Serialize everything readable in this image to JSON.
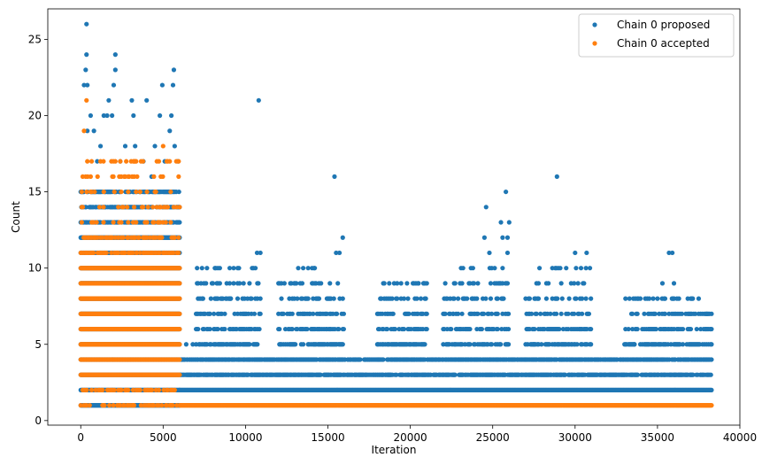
{
  "chart_data": {
    "type": "scatter",
    "title": "",
    "xlabel": "Iteration",
    "ylabel": "Count",
    "xlim": [
      -2000,
      40000
    ],
    "ylim": [
      -0.3,
      27
    ],
    "xticks": [
      0,
      5000,
      10000,
      15000,
      20000,
      25000,
      30000,
      35000,
      40000
    ],
    "yticks": [
      0,
      5,
      10,
      15,
      20,
      25
    ],
    "grid": false,
    "legend_position": "top-right",
    "series": [
      {
        "name": "Chain 0 proposed",
        "color": "#1f77b4",
        "bands": [
          {
            "x0": 0,
            "x1": 6000,
            "y": [
              1,
              2,
              3,
              4,
              5,
              6,
              7,
              8,
              9,
              10,
              11,
              12,
              13,
              14,
              15
            ]
          },
          {
            "x0": 6000,
            "x1": 38300,
            "y": [
              2
            ]
          },
          {
            "x0": 6000,
            "x1": 38300,
            "y": [
              3,
              4
            ],
            "gap_density": true
          }
        ],
        "clusters": [
          {
            "x0": 7000,
            "x1": 11000,
            "y": [
              5,
              6,
              7,
              8,
              9,
              10
            ]
          },
          {
            "x0": 12000,
            "x1": 16000,
            "y": [
              5,
              6,
              7,
              8,
              9,
              10
            ]
          },
          {
            "x0": 18000,
            "x1": 21000,
            "y": [
              5,
              6,
              7,
              8,
              9
            ]
          },
          {
            "x0": 22000,
            "x1": 26000,
            "y": [
              5,
              6,
              7,
              8,
              9,
              10
            ]
          },
          {
            "x0": 27000,
            "x1": 31000,
            "y": [
              5,
              6,
              7,
              8,
              9,
              10
            ]
          },
          {
            "x0": 33000,
            "x1": 38300,
            "y": [
              5,
              6,
              7,
              8
            ]
          }
        ],
        "points": [
          {
            "x": 350,
            "y": 26
          },
          {
            "x": 350,
            "y": 24
          },
          {
            "x": 300,
            "y": 23
          },
          {
            "x": 400,
            "y": 22
          },
          {
            "x": 200,
            "y": 22
          },
          {
            "x": 600,
            "y": 20
          },
          {
            "x": 400,
            "y": 19
          },
          {
            "x": 2100,
            "y": 24
          },
          {
            "x": 2100,
            "y": 23
          },
          {
            "x": 2000,
            "y": 22
          },
          {
            "x": 1900,
            "y": 20
          },
          {
            "x": 1400,
            "y": 20
          },
          {
            "x": 1700,
            "y": 21
          },
          {
            "x": 1600,
            "y": 20
          },
          {
            "x": 3100,
            "y": 21
          },
          {
            "x": 3200,
            "y": 20
          },
          {
            "x": 4000,
            "y": 21
          },
          {
            "x": 4800,
            "y": 20
          },
          {
            "x": 4950,
            "y": 22
          },
          {
            "x": 5600,
            "y": 22
          },
          {
            "x": 5650,
            "y": 23
          },
          {
            "x": 5500,
            "y": 20
          },
          {
            "x": 5400,
            "y": 19
          },
          {
            "x": 5700,
            "y": 18
          },
          {
            "x": 4500,
            "y": 18
          },
          {
            "x": 3800,
            "y": 17
          },
          {
            "x": 3300,
            "y": 18
          },
          {
            "x": 2700,
            "y": 18
          },
          {
            "x": 1200,
            "y": 18
          },
          {
            "x": 800,
            "y": 19
          },
          {
            "x": 5900,
            "y": 17
          },
          {
            "x": 5100,
            "y": 17
          },
          {
            "x": 2400,
            "y": 17
          },
          {
            "x": 1000,
            "y": 17
          },
          {
            "x": 4300,
            "y": 16
          },
          {
            "x": 10800,
            "y": 21
          },
          {
            "x": 10700,
            "y": 11
          },
          {
            "x": 10900,
            "y": 11
          },
          {
            "x": 15400,
            "y": 16
          },
          {
            "x": 15900,
            "y": 12
          },
          {
            "x": 15700,
            "y": 11
          },
          {
            "x": 15500,
            "y": 11
          },
          {
            "x": 14200,
            "y": 10
          },
          {
            "x": 13500,
            "y": 10
          },
          {
            "x": 13000,
            "y": 9
          },
          {
            "x": 24600,
            "y": 14
          },
          {
            "x": 25800,
            "y": 15
          },
          {
            "x": 25500,
            "y": 13
          },
          {
            "x": 26000,
            "y": 13
          },
          {
            "x": 24500,
            "y": 12
          },
          {
            "x": 25600,
            "y": 12
          },
          {
            "x": 25900,
            "y": 12
          },
          {
            "x": 24800,
            "y": 11
          },
          {
            "x": 25900,
            "y": 11
          },
          {
            "x": 28900,
            "y": 16
          },
          {
            "x": 30000,
            "y": 11
          },
          {
            "x": 30700,
            "y": 11
          },
          {
            "x": 29100,
            "y": 10
          },
          {
            "x": 9600,
            "y": 10
          },
          {
            "x": 10400,
            "y": 10
          },
          {
            "x": 19800,
            "y": 9
          },
          {
            "x": 20500,
            "y": 9
          },
          {
            "x": 20800,
            "y": 9
          },
          {
            "x": 19200,
            "y": 8
          },
          {
            "x": 35700,
            "y": 11
          },
          {
            "x": 35900,
            "y": 11
          },
          {
            "x": 35300,
            "y": 9
          },
          {
            "x": 36000,
            "y": 9
          },
          {
            "x": 35000,
            "y": 8
          },
          {
            "x": 34500,
            "y": 7
          },
          {
            "x": 37300,
            "y": 7
          },
          {
            "x": 38000,
            "y": 7
          },
          {
            "x": 37900,
            "y": 6
          },
          {
            "x": 38200,
            "y": 6
          },
          {
            "x": 6400,
            "y": 5
          },
          {
            "x": 6800,
            "y": 5
          },
          {
            "x": 7800,
            "y": 7
          },
          {
            "x": 7500,
            "y": 7
          },
          {
            "x": 8500,
            "y": 8
          },
          {
            "x": 9100,
            "y": 8
          },
          {
            "x": 17500,
            "y": 4
          },
          {
            "x": 21700,
            "y": 4
          },
          {
            "x": 22600,
            "y": 7
          },
          {
            "x": 23200,
            "y": 8
          },
          {
            "x": 26500,
            "y": 4
          },
          {
            "x": 27500,
            "y": 5
          },
          {
            "x": 32500,
            "y": 3
          },
          {
            "x": 33200,
            "y": 4
          },
          {
            "x": 33600,
            "y": 5
          }
        ]
      },
      {
        "name": "Chain 0 accepted",
        "color": "#ff7f0e",
        "bands": [
          {
            "x0": 0,
            "x1": 6000,
            "y": [
              3,
              4,
              5,
              6,
              7,
              8,
              9,
              10
            ]
          },
          {
            "x0": 6000,
            "x1": 38300,
            "y": [
              1
            ]
          }
        ],
        "sparse": [
          {
            "x0": 0,
            "x1": 6000,
            "y": [
              1,
              2,
              11,
              12,
              13,
              14,
              15,
              16,
              17
            ]
          }
        ],
        "points": [
          {
            "x": 350,
            "y": 21
          },
          {
            "x": 200,
            "y": 19
          },
          {
            "x": 5000,
            "y": 18
          },
          {
            "x": 3200,
            "y": 17
          },
          {
            "x": 2100,
            "y": 17
          },
          {
            "x": 5800,
            "y": 17
          },
          {
            "x": 400,
            "y": 17
          },
          {
            "x": 2700,
            "y": 16
          },
          {
            "x": 600,
            "y": 16
          },
          {
            "x": 1400,
            "y": 15
          },
          {
            "x": 4500,
            "y": 15
          },
          {
            "x": 3600,
            "y": 15
          }
        ]
      }
    ]
  },
  "legend": {
    "items": [
      {
        "label": "Chain 0 proposed",
        "color": "#1f77b4"
      },
      {
        "label": "Chain 0 accepted",
        "color": "#ff7f0e"
      }
    ]
  },
  "axes": {
    "xlabel": "Iteration",
    "ylabel": "Count"
  }
}
